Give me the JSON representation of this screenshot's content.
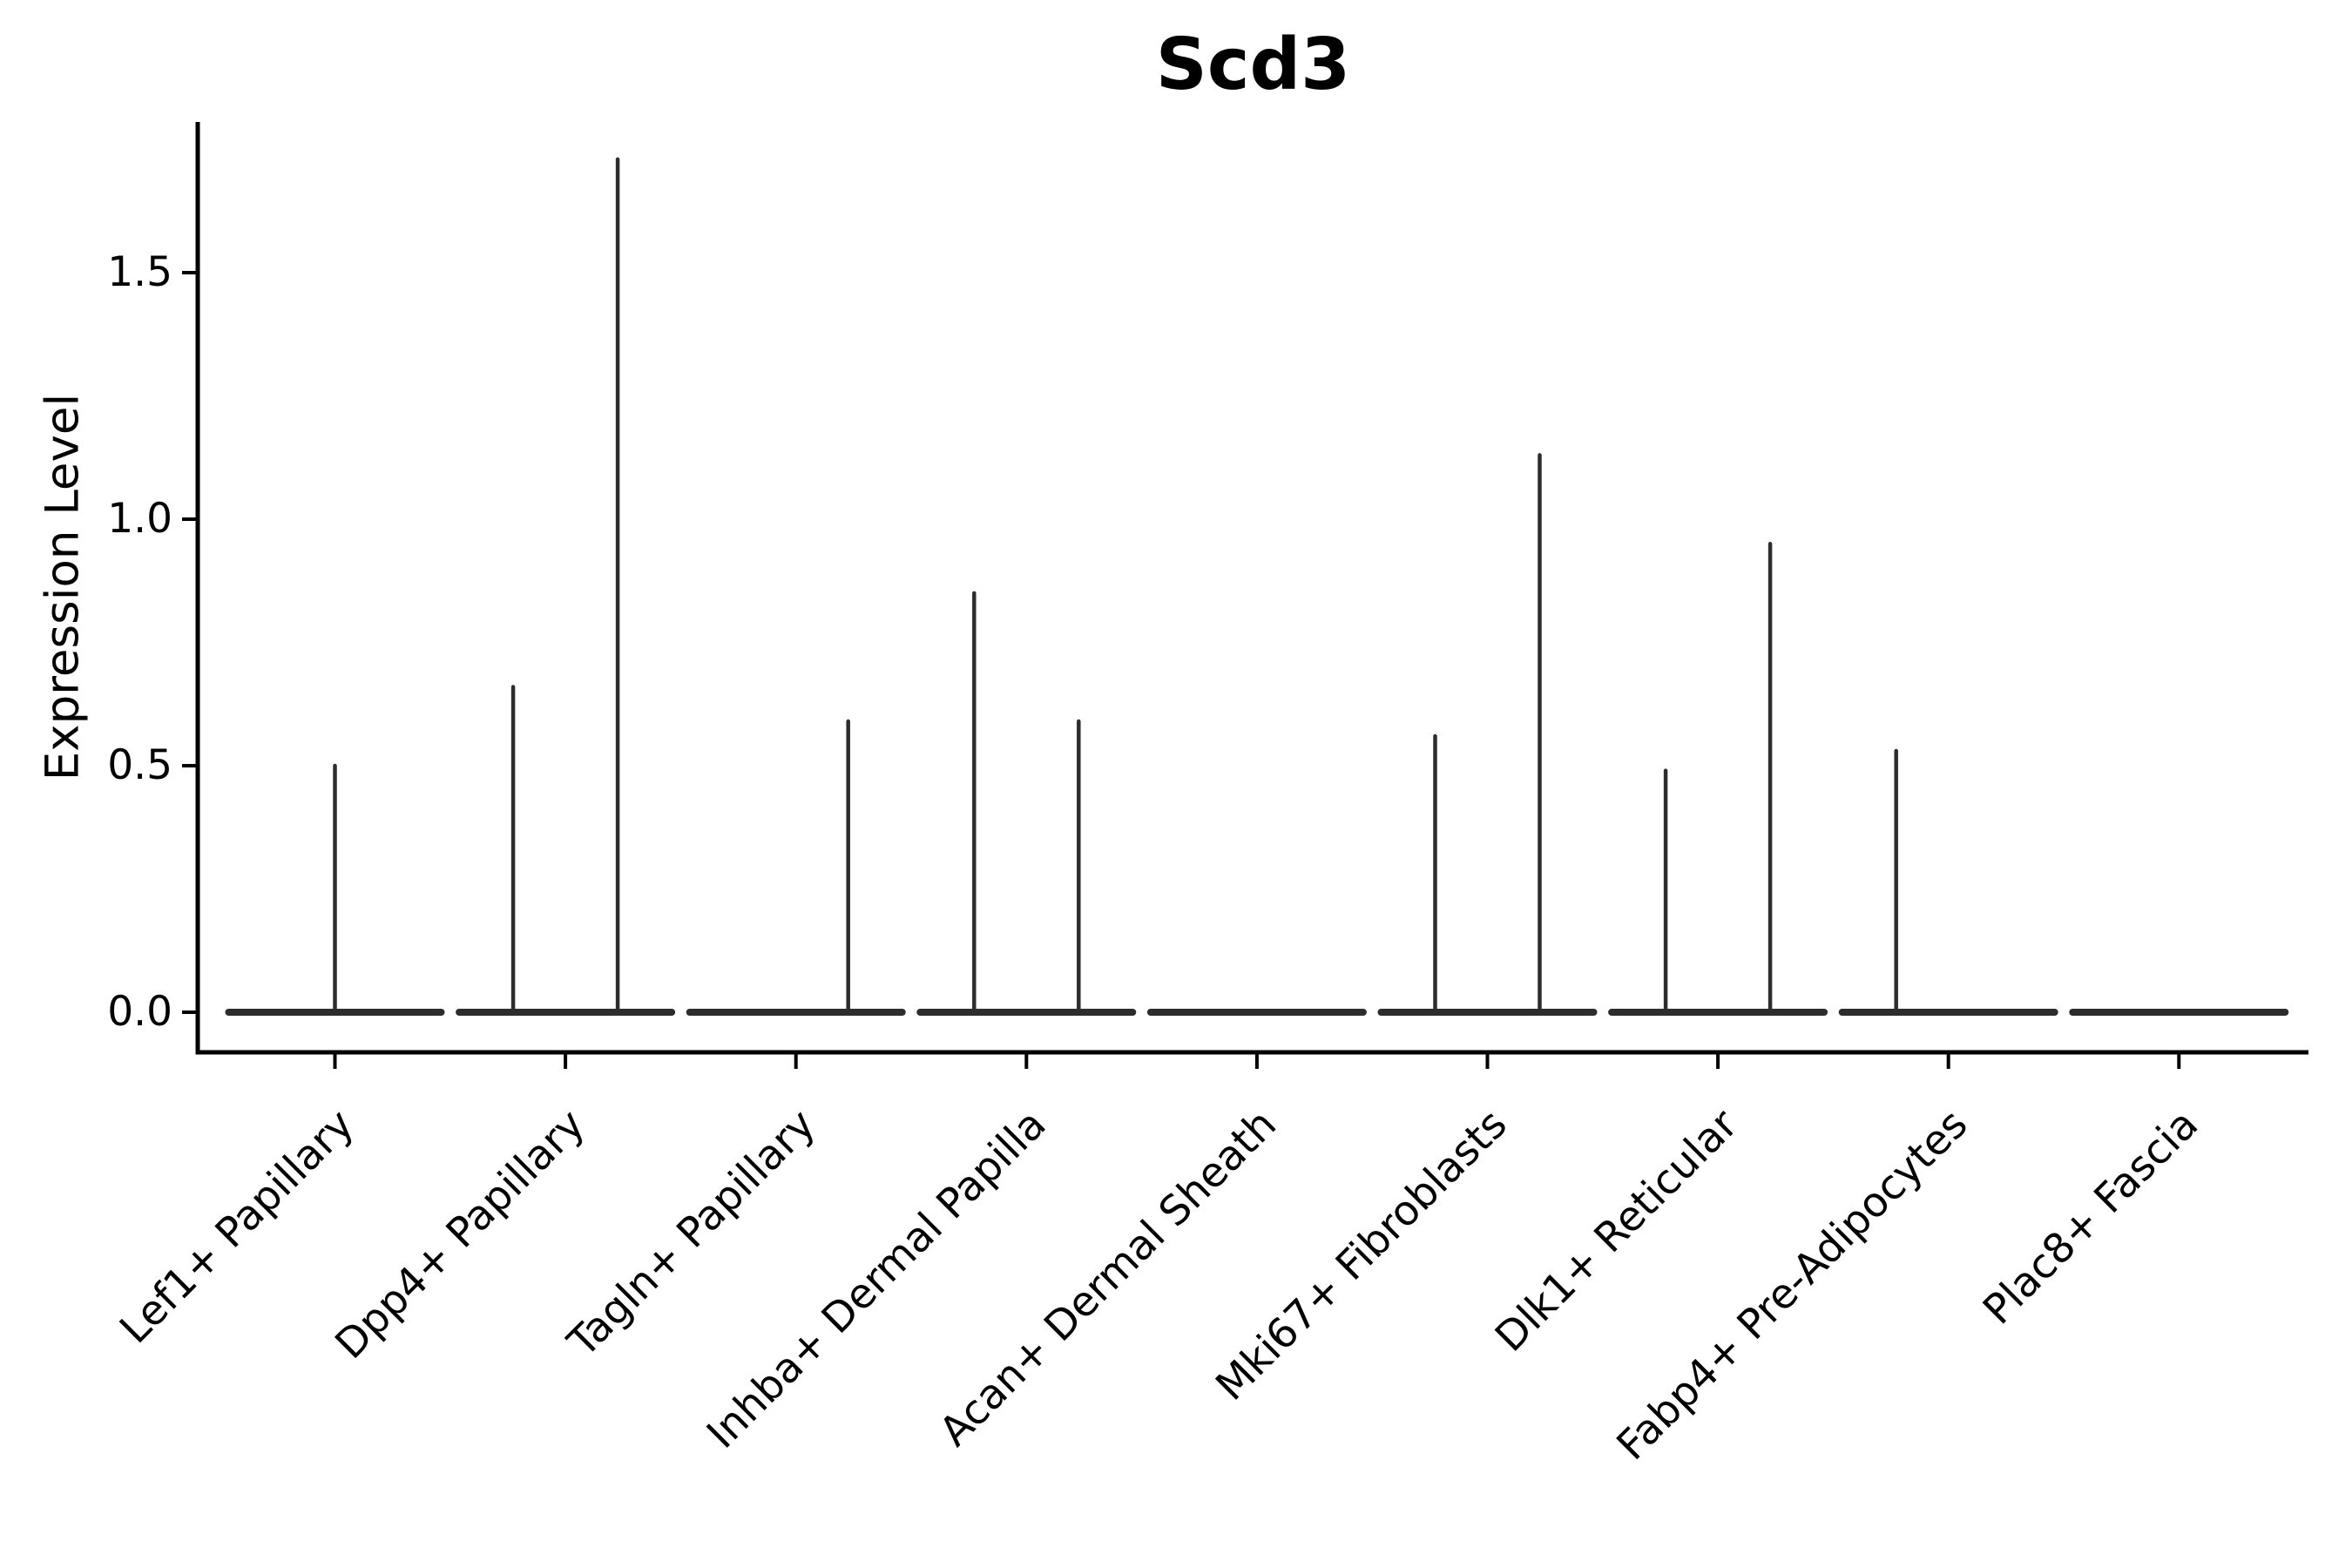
{
  "chart_data": {
    "type": "violin",
    "title": "Scd3",
    "xlabel": "",
    "ylabel": "Expression Level",
    "yticks": [
      "0.0",
      "0.5",
      "1.0",
      "1.5"
    ],
    "ytick_values": [
      0.0,
      0.5,
      1.0,
      1.5
    ],
    "ylim": [
      -0.08,
      1.81
    ],
    "grid": false,
    "legend": null,
    "xtick_rotation": 45,
    "categories": [
      "Lef1+ Papillary",
      "Dpp4+ Papillary",
      "Tagln+ Papillary",
      "Inhba+ Dermal Papilla",
      "Acan+ Dermal Sheath",
      "Mki67+ Fibroblasts",
      "Dlk1+ Reticular",
      "Fabp4+ Pre-Adipocytes",
      "Plac8+ Fascia"
    ],
    "description": "Violin plot of Scd3 expression level per fibroblast cluster. Every category shows a flat collapsed violin at 0 with up to two narrow spikes (side-by-side sub-violins) reaching the maximum expression value.",
    "violins": [
      {
        "category": "Lef1+ Papillary",
        "base_value": 0.0,
        "spikes": [
          {
            "position": "center",
            "peak": 0.5
          }
        ]
      },
      {
        "category": "Dpp4+ Papillary",
        "base_value": 0.0,
        "spikes": [
          {
            "position": "left",
            "peak": 0.66
          },
          {
            "position": "right",
            "peak": 1.73
          }
        ]
      },
      {
        "category": "Tagln+ Papillary",
        "base_value": 0.0,
        "spikes": [
          {
            "position": "right",
            "peak": 0.59
          }
        ]
      },
      {
        "category": "Inhba+ Dermal Papilla",
        "base_value": 0.0,
        "spikes": [
          {
            "position": "left",
            "peak": 0.85
          },
          {
            "position": "right",
            "peak": 0.59
          }
        ]
      },
      {
        "category": "Acan+ Dermal Sheath",
        "base_value": 0.0,
        "spikes": []
      },
      {
        "category": "Mki67+ Fibroblasts",
        "base_value": 0.0,
        "spikes": [
          {
            "position": "left",
            "peak": 0.56
          },
          {
            "position": "right",
            "peak": 1.13
          }
        ]
      },
      {
        "category": "Dlk1+ Reticular",
        "base_value": 0.0,
        "spikes": [
          {
            "position": "left",
            "peak": 0.49
          },
          {
            "position": "right",
            "peak": 0.95
          }
        ]
      },
      {
        "category": "Fabp4+ Pre-Adipocytes",
        "base_value": 0.0,
        "spikes": [
          {
            "position": "left",
            "peak": 0.53
          }
        ]
      },
      {
        "category": "Plac8+ Fascia",
        "base_value": 0.0,
        "spikes": []
      }
    ],
    "colors": {
      "violin": "#2d2d2d",
      "axis": "#000000",
      "text": "#000000",
      "background": "#ffffff"
    }
  }
}
